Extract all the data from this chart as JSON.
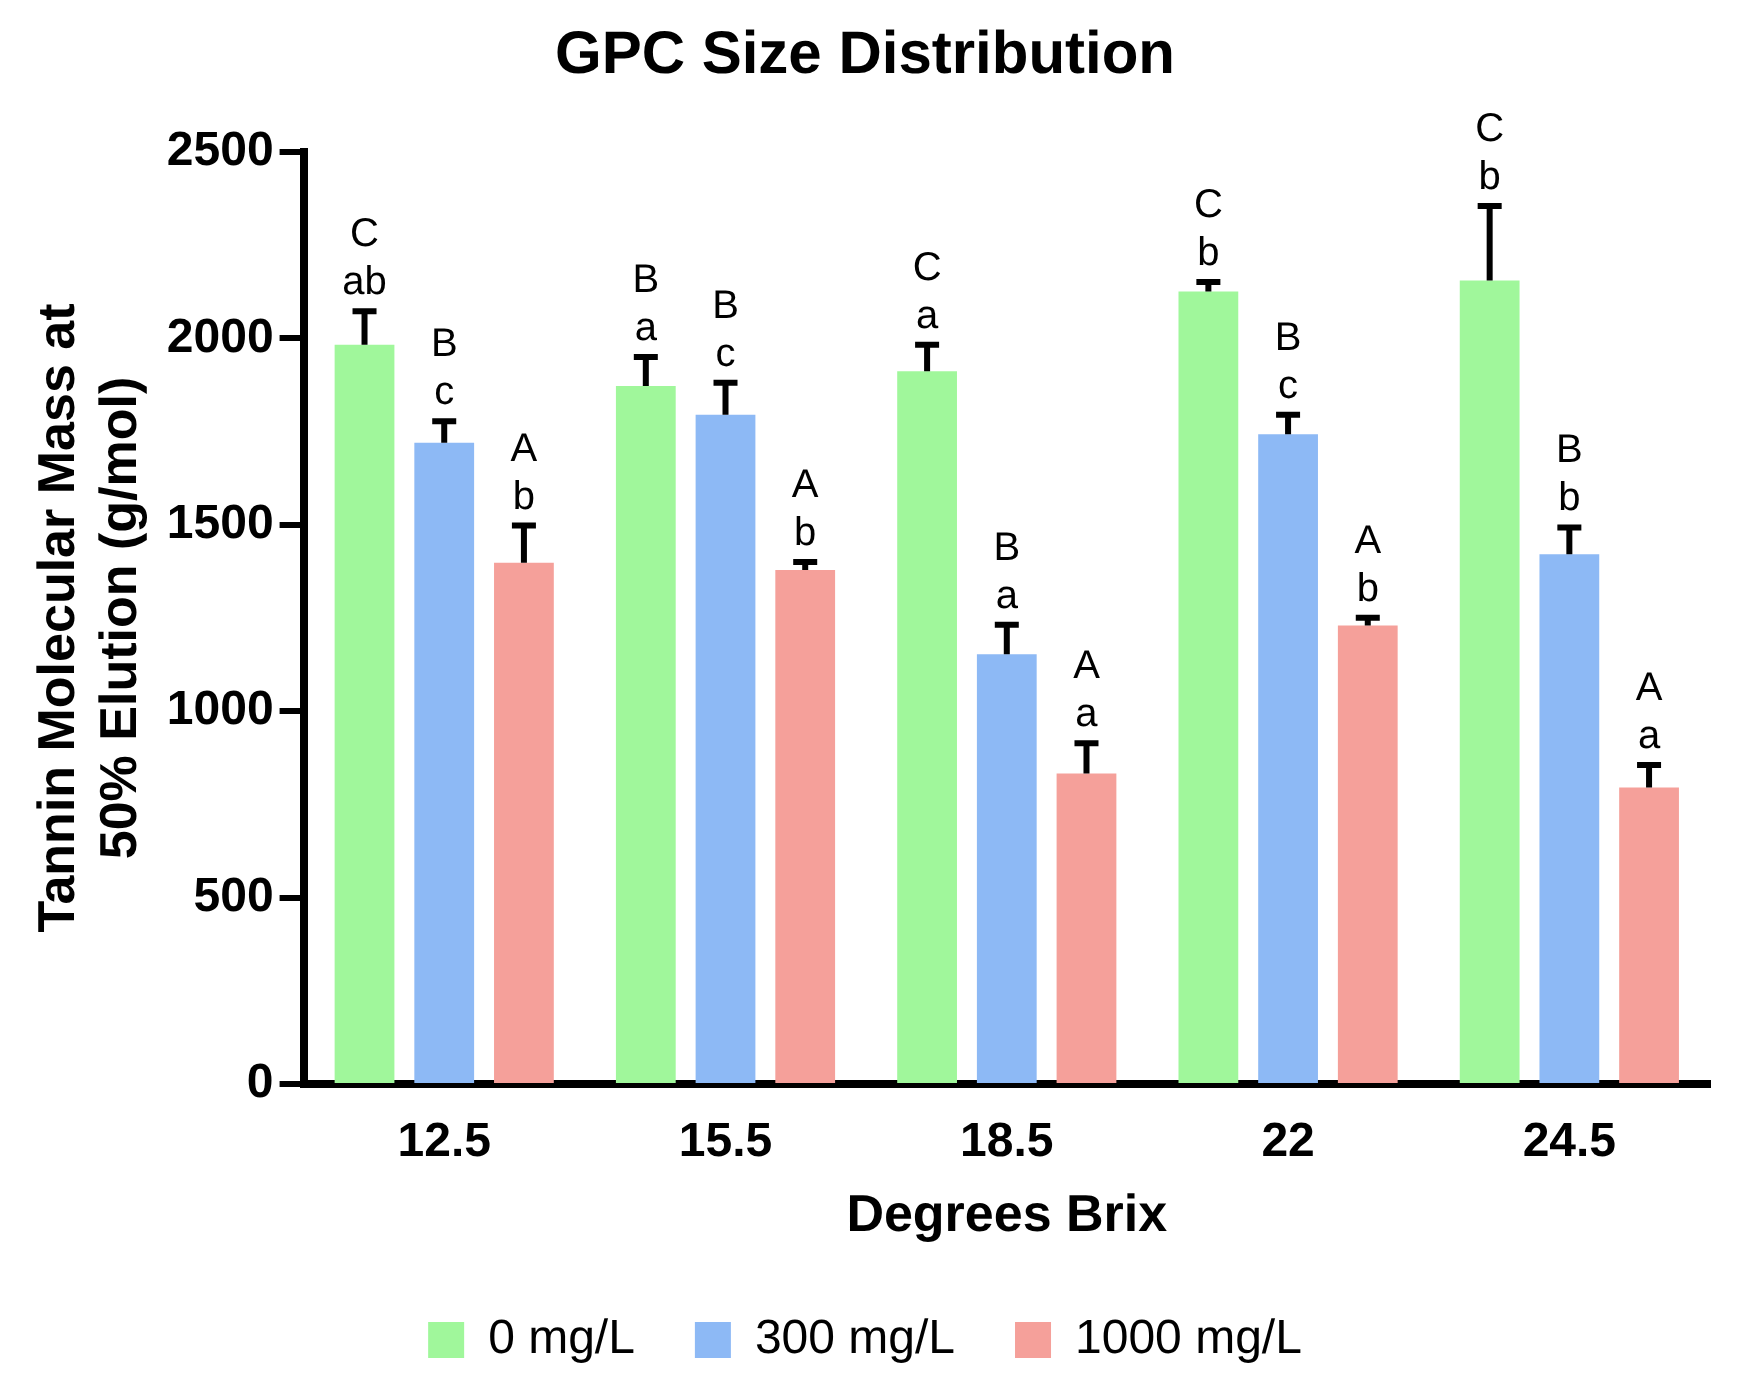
{
  "chart_data": {
    "type": "bar",
    "title": "GPC Size Distribution",
    "xlabel": "Degrees Brix",
    "ylabel": "Tannin Molecular Mass at\n50% Elution (g/mol)",
    "categories": [
      "12.5",
      "15.5",
      "18.5",
      "22",
      "24.5"
    ],
    "series": [
      {
        "name": "0 mg/L",
        "color": "#a0f79b",
        "values": [
          1983,
          1872,
          1912,
          2126,
          2155
        ],
        "errors": [
          [
            1983,
            2073
          ],
          [
            1872,
            1950
          ],
          [
            1912,
            1983
          ],
          [
            2126,
            2151
          ],
          [
            2155,
            2355
          ]
        ],
        "value_labels": [
          "C\nab",
          "B\na",
          "C\na",
          "C\nb",
          "C\nb"
        ]
      },
      {
        "name": "300 mg/L",
        "color": "#8db9f5",
        "values": [
          1720,
          1795,
          1153,
          1743,
          1421
        ],
        "errors": [
          [
            1720,
            1778
          ],
          [
            1795,
            1881
          ],
          [
            1153,
            1232
          ],
          [
            1743,
            1795
          ],
          [
            1421,
            1493
          ]
        ],
        "value_labels": [
          "B\nc",
          "B\nc",
          "B\na",
          "B\nc",
          "B\nb"
        ]
      },
      {
        "name": "1000 mg/L",
        "color": "#f5a09a",
        "values": [
          1398,
          1379,
          833,
          1230,
          795
        ],
        "errors": [
          [
            1398,
            1498
          ],
          [
            1379,
            1400
          ],
          [
            833,
            914
          ],
          [
            1230,
            1251
          ],
          [
            795,
            856
          ]
        ],
        "value_labels": [
          "A\nb",
          "A\nb",
          "A\na",
          "A\nb",
          "A\na"
        ]
      }
    ],
    "ylim": [
      0,
      2500
    ],
    "yticks": [
      0,
      500,
      1000,
      1500,
      2000,
      2500
    ],
    "grid": false,
    "legend": "bottom"
  }
}
